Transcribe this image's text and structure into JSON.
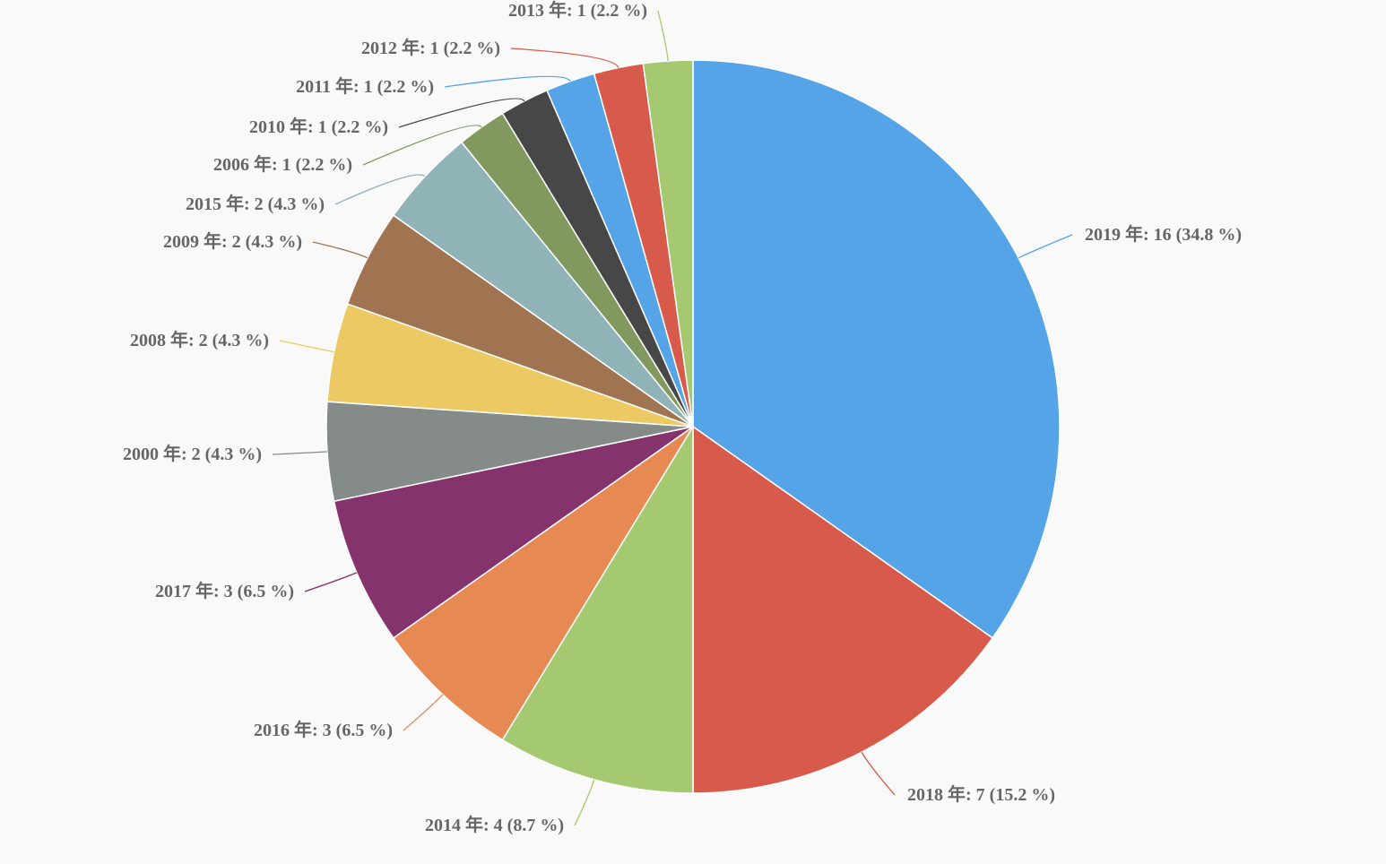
{
  "chart_data": {
    "type": "pie",
    "title": "",
    "start_angle": "12 o'clock",
    "direction": "clockwise",
    "slices": [
      {
        "label": "2019 年",
        "value": 16,
        "percent": "34.8 %",
        "color": "#56a4e8",
        "text": "2019 年: 16 (34.8 %)"
      },
      {
        "label": "2018 年",
        "value": 7,
        "percent": "15.2 %",
        "color": "#d85a4a",
        "text": "2018 年: 7 (15.2 %)"
      },
      {
        "label": "2014 年",
        "value": 4,
        "percent": "8.7 %",
        "color": "#a4c970",
        "text": "2014 年: 4 (8.7 %)"
      },
      {
        "label": "2016 年",
        "value": 3,
        "percent": "6.5 %",
        "color": "#e68953",
        "text": "2016 年: 3 (6.5 %)"
      },
      {
        "label": "2017 年",
        "value": 3,
        "percent": "6.5 %",
        "color": "#84336d",
        "text": "2017 年: 3 (6.5 %)"
      },
      {
        "label": "2000 年",
        "value": 2,
        "percent": "4.3 %",
        "color": "#858b89",
        "text": "2000 年: 2 (4.3 %)"
      },
      {
        "label": "2008 年",
        "value": 2,
        "percent": "4.3 %",
        "color": "#ecc962",
        "text": "2008 年: 2 (4.3 %)"
      },
      {
        "label": "2009 年",
        "value": 2,
        "percent": "4.3 %",
        "color": "#a07451",
        "text": "2009 年: 2 (4.3 %)"
      },
      {
        "label": "2015 年",
        "value": 2,
        "percent": "4.3 %",
        "color": "#8fb3b7",
        "text": "2015 年: 2 (4.3 %)"
      },
      {
        "label": "2006 年",
        "value": 1,
        "percent": "2.2 %",
        "color": "#81995e",
        "text": "2006 年: 1 (2.2 %)"
      },
      {
        "label": "2010 年",
        "value": 1,
        "percent": "2.2 %",
        "color": "#474747",
        "text": "2010 年: 1 (2.2 %)"
      },
      {
        "label": "2011 年",
        "value": 1,
        "percent": "2.2 %",
        "color": "#56a4e8",
        "text": "2011 年: 1 (2.2 %)"
      },
      {
        "label": "2012 年",
        "value": 1,
        "percent": "2.2 %",
        "color": "#d85a4a",
        "text": "2012 年: 1 (2.2 %)"
      },
      {
        "label": "2013 年",
        "value": 1,
        "percent": "2.2 %",
        "color": "#a4c970",
        "text": "2013 年: 1 (2.2 %)"
      }
    ]
  }
}
